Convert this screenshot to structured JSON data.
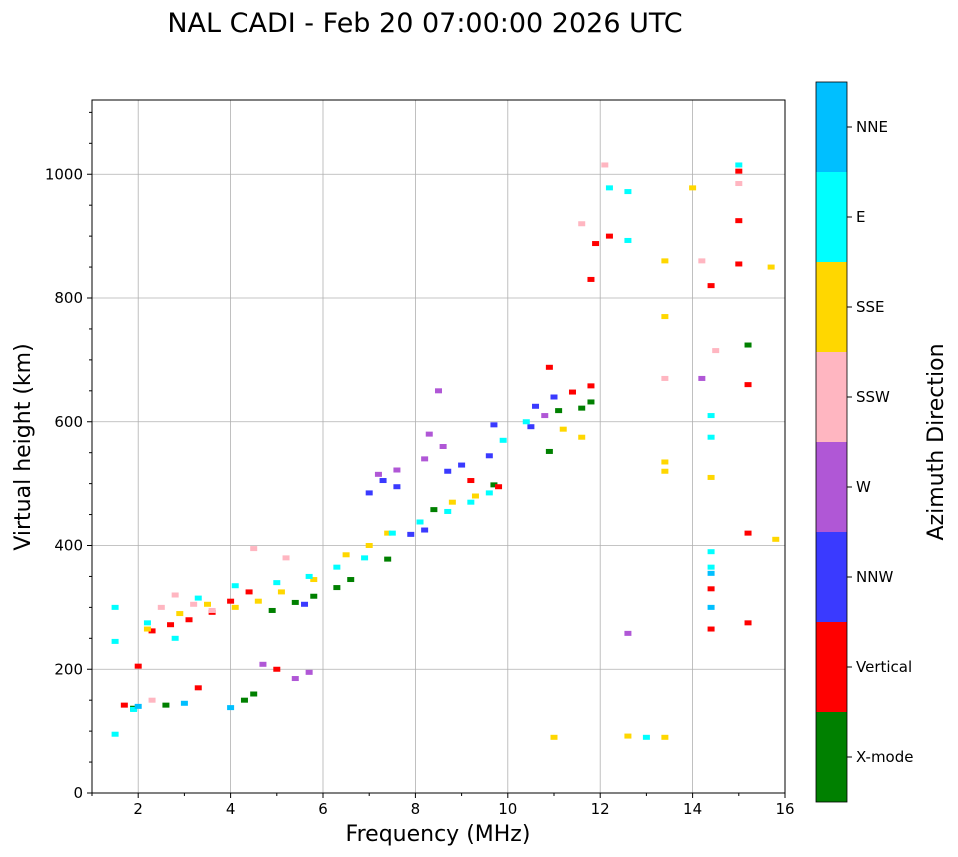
{
  "chart_data": {
    "type": "scatter",
    "title": "NAL CADI - Feb 20 07:00:00 2026 UTC",
    "xlabel": "Frequency (MHz)",
    "ylabel": "Virtual height (km)",
    "xlim": [
      1,
      16
    ],
    "ylim": [
      0,
      1120
    ],
    "xticks": [
      2,
      4,
      6,
      8,
      10,
      12,
      14,
      16
    ],
    "yticks": [
      0,
      200,
      400,
      600,
      800,
      1000
    ],
    "grid": true,
    "colorbar": {
      "label": "Azimuth Direction",
      "categories": [
        "X-mode",
        "Vertical",
        "NNW",
        "W",
        "SSW",
        "SSE",
        "E",
        "NNE"
      ],
      "colors": [
        "#008000",
        "#ff0000",
        "#3a3aff",
        "#b057d6",
        "#ffb6c1",
        "#ffd700",
        "#00ffff",
        "#00bfff"
      ]
    },
    "series": [
      {
        "name": "X-mode",
        "points": [
          [
            1.9,
            137
          ],
          [
            2.6,
            142
          ],
          [
            4.3,
            150
          ],
          [
            4.5,
            160
          ],
          [
            4.9,
            295
          ],
          [
            5.4,
            308
          ],
          [
            5.8,
            318
          ],
          [
            6.3,
            332
          ],
          [
            6.6,
            345
          ],
          [
            7.4,
            378
          ],
          [
            8.4,
            458
          ],
          [
            9.7,
            498
          ],
          [
            10.9,
            552
          ],
          [
            11.1,
            618
          ],
          [
            11.6,
            622
          ],
          [
            11.8,
            632
          ],
          [
            15.2,
            724
          ]
        ]
      },
      {
        "name": "Vertical",
        "points": [
          [
            1.7,
            142
          ],
          [
            2.0,
            205
          ],
          [
            2.3,
            262
          ],
          [
            2.7,
            272
          ],
          [
            3.1,
            280
          ],
          [
            3.3,
            170
          ],
          [
            3.6,
            292
          ],
          [
            4.0,
            310
          ],
          [
            4.4,
            325
          ],
          [
            5.0,
            200
          ],
          [
            9.2,
            505
          ],
          [
            9.8,
            495
          ],
          [
            10.9,
            688
          ],
          [
            11.4,
            648
          ],
          [
            11.8,
            658
          ],
          [
            11.9,
            888
          ],
          [
            12.2,
            900
          ],
          [
            11.8,
            830
          ],
          [
            14.4,
            330
          ],
          [
            14.4,
            265
          ],
          [
            14.4,
            820
          ],
          [
            15.0,
            855
          ],
          [
            15.0,
            925
          ],
          [
            15.0,
            1005
          ],
          [
            15.2,
            660
          ],
          [
            15.2,
            420
          ],
          [
            15.2,
            275
          ]
        ]
      },
      {
        "name": "NNW",
        "points": [
          [
            5.6,
            305
          ],
          [
            7.0,
            485
          ],
          [
            7.3,
            505
          ],
          [
            7.6,
            495
          ],
          [
            7.9,
            418
          ],
          [
            8.2,
            425
          ],
          [
            8.7,
            520
          ],
          [
            9.0,
            530
          ],
          [
            9.6,
            545
          ],
          [
            9.7,
            595
          ],
          [
            10.5,
            592
          ],
          [
            10.6,
            625
          ],
          [
            11.0,
            640
          ]
        ]
      },
      {
        "name": "W",
        "points": [
          [
            4.7,
            208
          ],
          [
            5.4,
            185
          ],
          [
            5.7,
            195
          ],
          [
            7.2,
            515
          ],
          [
            7.6,
            522
          ],
          [
            8.2,
            540
          ],
          [
            8.3,
            580
          ],
          [
            8.5,
            650
          ],
          [
            8.6,
            560
          ],
          [
            12.6,
            258
          ],
          [
            14.2,
            670
          ],
          [
            10.8,
            610
          ]
        ]
      },
      {
        "name": "SSW",
        "points": [
          [
            2.5,
            300
          ],
          [
            2.8,
            320
          ],
          [
            3.2,
            305
          ],
          [
            3.6,
            295
          ],
          [
            4.5,
            395
          ],
          [
            5.2,
            380
          ],
          [
            11.6,
            920
          ],
          [
            13.4,
            670
          ],
          [
            14.2,
            860
          ],
          [
            14.5,
            715
          ],
          [
            15.0,
            985
          ],
          [
            2.3,
            150
          ],
          [
            12.1,
            1015
          ]
        ]
      },
      {
        "name": "SSE",
        "points": [
          [
            2.2,
            265
          ],
          [
            2.9,
            290
          ],
          [
            3.5,
            305
          ],
          [
            4.1,
            300
          ],
          [
            4.6,
            310
          ],
          [
            5.1,
            325
          ],
          [
            5.8,
            345
          ],
          [
            6.5,
            385
          ],
          [
            7.0,
            400
          ],
          [
            7.4,
            420
          ],
          [
            8.8,
            470
          ],
          [
            9.3,
            480
          ],
          [
            11.2,
            588
          ],
          [
            11.6,
            575
          ],
          [
            13.4,
            860
          ],
          [
            13.4,
            770
          ],
          [
            13.4,
            520
          ],
          [
            13.4,
            535
          ],
          [
            14.0,
            978
          ],
          [
            14.4,
            510
          ],
          [
            15.7,
            850
          ],
          [
            15.8,
            410
          ],
          [
            12.6,
            92
          ],
          [
            13.4,
            90
          ],
          [
            11.0,
            90
          ]
        ]
      },
      {
        "name": "E",
        "points": [
          [
            1.5,
            300
          ],
          [
            1.5,
            245
          ],
          [
            1.9,
            135
          ],
          [
            2.2,
            275
          ],
          [
            2.8,
            250
          ],
          [
            3.3,
            315
          ],
          [
            4.1,
            335
          ],
          [
            5.0,
            340
          ],
          [
            5.7,
            350
          ],
          [
            6.3,
            365
          ],
          [
            6.9,
            380
          ],
          [
            7.5,
            420
          ],
          [
            8.1,
            438
          ],
          [
            8.7,
            455
          ],
          [
            9.2,
            470
          ],
          [
            9.6,
            485
          ],
          [
            9.9,
            570
          ],
          [
            10.4,
            600
          ],
          [
            12.2,
            978
          ],
          [
            12.6,
            972
          ],
          [
            12.6,
            893
          ],
          [
            14.4,
            365
          ],
          [
            14.4,
            575
          ],
          [
            14.4,
            610
          ],
          [
            14.4,
            390
          ],
          [
            15.0,
            1015
          ],
          [
            1.5,
            95
          ],
          [
            13.0,
            90
          ]
        ]
      },
      {
        "name": "NNE",
        "points": [
          [
            2.0,
            140
          ],
          [
            3.0,
            145
          ],
          [
            4.0,
            138
          ],
          [
            14.4,
            300
          ],
          [
            14.4,
            355
          ]
        ]
      }
    ]
  }
}
